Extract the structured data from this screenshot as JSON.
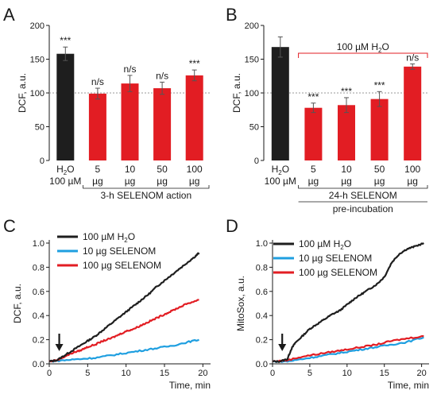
{
  "colors": {
    "black": "#1e1e1e",
    "red": "#e21d23",
    "blue": "#1f9fe0",
    "guide": "#9a9a9a"
  },
  "chart_data": [
    {
      "panel": "A",
      "type": "bar",
      "ylabel": "DCF, a.u.",
      "ylim": [
        0,
        200
      ],
      "yticks": [
        "0",
        "50",
        "100",
        "150",
        "200"
      ],
      "reference_line": 100,
      "categories": [
        {
          "line1": "H",
          "sub": "2",
          "line1b": "O",
          "line2": "100 µM"
        },
        {
          "line1": "5",
          "line2": "µg"
        },
        {
          "line1": "10",
          "line2": "µg"
        },
        {
          "line1": "50",
          "line2": "µg"
        },
        {
          "line1": "100",
          "line2": "µg"
        }
      ],
      "values": [
        158,
        99,
        114,
        107,
        126
      ],
      "errors": [
        10,
        8,
        12,
        9,
        8
      ],
      "colors": [
        "black",
        "red",
        "red",
        "red",
        "red"
      ],
      "significance": [
        "***",
        "n/s",
        "n/s",
        "n/s",
        "***"
      ],
      "group_label": "3-h SELENOM action"
    },
    {
      "panel": "B",
      "type": "bar",
      "ylabel": "DCF, a.u.",
      "ylim": [
        0,
        200
      ],
      "yticks": [
        "0",
        "50",
        "100",
        "150",
        "200"
      ],
      "reference_line": 100,
      "categories": [
        {
          "line1": "H",
          "sub": "2",
          "line1b": "O",
          "line2": "100 µM"
        },
        {
          "line1": "5",
          "line2": "µg"
        },
        {
          "line1": "10",
          "line2": "µg"
        },
        {
          "line1": "50",
          "line2": "µg"
        },
        {
          "line1": "100",
          "line2": "µg"
        }
      ],
      "values": [
        168,
        78,
        82,
        91,
        139
      ],
      "errors": [
        15,
        7,
        11,
        11,
        4
      ],
      "colors": [
        "black",
        "red",
        "red",
        "red",
        "red"
      ],
      "significance": [
        "",
        "***",
        "***",
        "***",
        "n/s"
      ],
      "top_bracket": {
        "pre": "100 µM H",
        "sub": "2",
        "post": "O"
      },
      "group_label": "24-h SELENOM",
      "group_label2": "pre-incubation"
    },
    {
      "panel": "C",
      "type": "line",
      "xlabel": "Time, min",
      "ylabel": "DCF, a.u.",
      "xlim": [
        0,
        21
      ],
      "ylim": [
        0,
        1.0
      ],
      "xticks": [
        "0",
        "5",
        "10",
        "15",
        "20"
      ],
      "yticks": [
        "0.0",
        "0.2",
        "0.4",
        "0.6",
        "0.8",
        "1.0"
      ],
      "arrow_at": 1.3,
      "series": [
        {
          "name_pre": "100 µM H",
          "name_sub": "2",
          "name_post": "O",
          "color": "black",
          "points": [
            [
              0,
              0.02
            ],
            [
              1,
              0.03
            ],
            [
              2,
              0.07
            ],
            [
              3,
              0.11
            ],
            [
              4,
              0.15
            ],
            [
              5,
              0.19
            ],
            [
              6,
              0.23
            ],
            [
              7,
              0.28
            ],
            [
              8,
              0.33
            ],
            [
              9,
              0.38
            ],
            [
              10,
              0.43
            ],
            [
              11,
              0.48
            ],
            [
              12,
              0.53
            ],
            [
              13,
              0.58
            ],
            [
              14,
              0.64
            ],
            [
              15,
              0.69
            ],
            [
              16,
              0.74
            ],
            [
              17,
              0.79
            ],
            [
              18,
              0.84
            ],
            [
              19,
              0.89
            ],
            [
              19.5,
              0.92
            ]
          ]
        },
        {
          "name_pre": "10 µg SELENOM",
          "color": "blue",
          "points": [
            [
              0,
              0.02
            ],
            [
              2,
              0.03
            ],
            [
              4,
              0.04
            ],
            [
              6,
              0.05
            ],
            [
              8,
              0.07
            ],
            [
              10,
              0.09
            ],
            [
              12,
              0.11
            ],
            [
              14,
              0.13
            ],
            [
              16,
              0.15
            ],
            [
              18,
              0.18
            ],
            [
              19.5,
              0.2
            ]
          ]
        },
        {
          "name_pre": "100 µg SELENOM",
          "color": "red",
          "points": [
            [
              0,
              0.02
            ],
            [
              1,
              0.03
            ],
            [
              2,
              0.06
            ],
            [
              3,
              0.09
            ],
            [
              4,
              0.11
            ],
            [
              5,
              0.14
            ],
            [
              6,
              0.16
            ],
            [
              7,
              0.19
            ],
            [
              8,
              0.21
            ],
            [
              9,
              0.24
            ],
            [
              10,
              0.27
            ],
            [
              11,
              0.29
            ],
            [
              12,
              0.32
            ],
            [
              13,
              0.35
            ],
            [
              14,
              0.38
            ],
            [
              15,
              0.41
            ],
            [
              16,
              0.44
            ],
            [
              17,
              0.47
            ],
            [
              18,
              0.5
            ],
            [
              19.5,
              0.53
            ]
          ]
        }
      ]
    },
    {
      "panel": "D",
      "type": "line",
      "xlabel": "Time, min",
      "ylabel": "MitoSox, a.u.",
      "xlim": [
        0,
        21
      ],
      "ylim": [
        0,
        1.0
      ],
      "xticks": [
        "0",
        "5",
        "10",
        "15",
        "20"
      ],
      "yticks": [
        "0.0",
        "0.2",
        "0.4",
        "0.6",
        "0.8",
        "1.0"
      ],
      "arrow_at": 1.3,
      "series": [
        {
          "name_pre": "100 µM H",
          "name_sub": "2",
          "name_post": "O",
          "color": "black",
          "points": [
            [
              0,
              0.02
            ],
            [
              1,
              0.02
            ],
            [
              2,
              0.04
            ],
            [
              2.5,
              0.12
            ],
            [
              3,
              0.17
            ],
            [
              4,
              0.23
            ],
            [
              5,
              0.29
            ],
            [
              6,
              0.33
            ],
            [
              7,
              0.37
            ],
            [
              8,
              0.41
            ],
            [
              9,
              0.44
            ],
            [
              10,
              0.49
            ],
            [
              11,
              0.54
            ],
            [
              12,
              0.58
            ],
            [
              13,
              0.62
            ],
            [
              14,
              0.66
            ],
            [
              15,
              0.72
            ],
            [
              16,
              0.84
            ],
            [
              17,
              0.91
            ],
            [
              18,
              0.95
            ],
            [
              19,
              0.97
            ],
            [
              20.3,
              1.0
            ]
          ]
        },
        {
          "name_pre": "10 µg SELENOM",
          "color": "blue",
          "points": [
            [
              0,
              0.02
            ],
            [
              2,
              0.02
            ],
            [
              4,
              0.04
            ],
            [
              6,
              0.06
            ],
            [
              8,
              0.08
            ],
            [
              10,
              0.1
            ],
            [
              12,
              0.12
            ],
            [
              14,
              0.14
            ],
            [
              16,
              0.16
            ],
            [
              18,
              0.18
            ],
            [
              20.3,
              0.22
            ]
          ]
        },
        {
          "name_pre": "100 µg SELENOM",
          "color": "red",
          "points": [
            [
              0,
              0.02
            ],
            [
              2,
              0.03
            ],
            [
              4,
              0.06
            ],
            [
              6,
              0.08
            ],
            [
              8,
              0.1
            ],
            [
              10,
              0.12
            ],
            [
              12,
              0.14
            ],
            [
              14,
              0.16
            ],
            [
              16,
              0.19
            ],
            [
              18,
              0.21
            ],
            [
              20.3,
              0.23
            ]
          ]
        }
      ]
    }
  ]
}
